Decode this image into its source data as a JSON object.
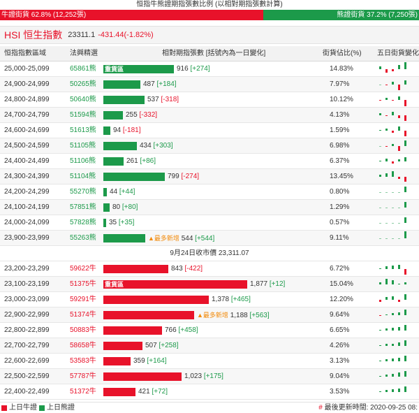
{
  "header": {
    "title": "恒指牛熊證期指張數比例 (以相對期指張數計算)",
    "bull_label": "牛證街貨 62.8% (12,252張)",
    "bear_label": "熊證街貨 37.2% (7,250張)",
    "bull_ratio": 0.628,
    "bull_color": "#e8122a",
    "bear_color": "#1c9a4a"
  },
  "index": {
    "name": "HSI 恒生指數",
    "price": "23311.1",
    "change": "-431.44(-1.82%)"
  },
  "columns": {
    "range": "恒指指數區域",
    "code": "法興精選",
    "count": "相對期指張數 [括號內為一日變化]",
    "pct": "街貨佔比(%)",
    "trend": "五日街貨變化"
  },
  "labels": {
    "heavy": "重貨區",
    "newest": "▲最多新增",
    "close_line": "9月24日收市價 23,311.07"
  },
  "bear_rows": [
    {
      "range": "25,000-25,099",
      "code": "65861熊",
      "count": "916",
      "chg": "[+274]",
      "pct": "14.83%",
      "value": 916,
      "heavy": true,
      "newest": false,
      "spark": [
        3,
        -4,
        -2,
        5,
        8
      ]
    },
    {
      "range": "24,900-24,999",
      "code": "50265熊",
      "count": "487",
      "chg": "[+184]",
      "pct": "7.97%",
      "value": 487,
      "heavy": false,
      "newest": false,
      "spark": [
        0,
        -1,
        3,
        -6,
        5
      ]
    },
    {
      "range": "24,800-24,899",
      "code": "50640熊",
      "count": "537",
      "chg": "[-318]",
      "pct": "10.12%",
      "value": 537,
      "heavy": false,
      "newest": false,
      "spark": [
        -1,
        2,
        -1,
        4,
        -7
      ]
    },
    {
      "range": "24,700-24,799",
      "code": "51594熊",
      "count": "255",
      "chg": "[-332]",
      "pct": "4.13%",
      "value": 255,
      "heavy": false,
      "newest": false,
      "spark": [
        2,
        -1,
        4,
        -3,
        -6
      ]
    },
    {
      "range": "24,600-24,699",
      "code": "51613熊",
      "count": "94",
      "chg": "[-181]",
      "pct": "1.59%",
      "value": 94,
      "heavy": false,
      "newest": false,
      "spark": [
        1,
        2,
        -2,
        5,
        -6
      ]
    },
    {
      "range": "24,500-24,599",
      "code": "51105熊",
      "count": "434",
      "chg": "[+303]",
      "pct": "6.98%",
      "value": 434,
      "heavy": false,
      "newest": false,
      "spark": [
        0,
        -1,
        2,
        -5,
        6
      ]
    },
    {
      "range": "24,400-24,499",
      "code": "51106熊",
      "count": "261",
      "chg": "[+86]",
      "pct": "6.37%",
      "value": 261,
      "heavy": false,
      "newest": false,
      "spark": [
        1,
        3,
        -2,
        2,
        5
      ]
    },
    {
      "range": "24,300-24,399",
      "code": "51104熊",
      "count": "799",
      "chg": "[-274]",
      "pct": "13.45%",
      "value": 799,
      "heavy": false,
      "newest": false,
      "spark": [
        2,
        4,
        6,
        -2,
        -5
      ]
    },
    {
      "range": "24,200-24,299",
      "code": "55270熊",
      "count": "44",
      "chg": "[+44]",
      "pct": "0.80%",
      "value": 44,
      "heavy": false,
      "newest": false,
      "spark": [
        0,
        0,
        0,
        0,
        6
      ]
    },
    {
      "range": "24,100-24,199",
      "code": "57851熊",
      "count": "80",
      "chg": "[+80]",
      "pct": "1.29%",
      "value": 80,
      "heavy": false,
      "newest": false,
      "spark": [
        0,
        0,
        0,
        0,
        6
      ]
    },
    {
      "range": "24,000-24,099",
      "code": "57828熊",
      "count": "35",
      "chg": "[+35]",
      "pct": "0.57%",
      "value": 35,
      "heavy": false,
      "newest": false,
      "spark": [
        0,
        0,
        0,
        0,
        6
      ]
    },
    {
      "range": "23,900-23,999",
      "code": "55263熊",
      "count": "544",
      "chg": "[+544]",
      "pct": "9.11%",
      "value": 544,
      "heavy": false,
      "newest": true,
      "spark": [
        0,
        0,
        0,
        0,
        8
      ]
    }
  ],
  "bull_rows": [
    {
      "range": "23,200-23,299",
      "code": "59622牛",
      "count": "843",
      "chg": "[-422]",
      "pct": "6.72%",
      "value": 843,
      "heavy": false,
      "newest": false,
      "spark": [
        1,
        3,
        4,
        5,
        -6
      ]
    },
    {
      "range": "23,100-23,199",
      "code": "51375牛",
      "count": "1,877",
      "chg": "[+12]",
      "pct": "15.04%",
      "value": 1877,
      "heavy": true,
      "newest": false,
      "spark": [
        2,
        6,
        5,
        1,
        2
      ]
    },
    {
      "range": "23,000-23,099",
      "code": "59291牛",
      "count": "1,378",
      "chg": "[+465]",
      "pct": "12.20%",
      "value": 1378,
      "heavy": false,
      "newest": false,
      "spark": [
        -2,
        3,
        4,
        -2,
        6
      ]
    },
    {
      "range": "22,900-22,999",
      "code": "51374牛",
      "count": "1,188",
      "chg": "[+563]",
      "pct": "9.64%",
      "value": 1188,
      "heavy": false,
      "newest": true,
      "spark": [
        -1,
        1,
        2,
        3,
        6
      ]
    },
    {
      "range": "22,800-22,899",
      "code": "50883牛",
      "count": "766",
      "chg": "[+458]",
      "pct": "6.65%",
      "value": 766,
      "heavy": false,
      "newest": false,
      "spark": [
        1,
        2,
        3,
        4,
        6
      ]
    },
    {
      "range": "22,700-22,799",
      "code": "58658牛",
      "count": "507",
      "chg": "[+258]",
      "pct": "4.26%",
      "value": 507,
      "heavy": false,
      "newest": false,
      "spark": [
        1,
        2,
        2,
        4,
        6
      ]
    },
    {
      "range": "22,600-22,699",
      "code": "53583牛",
      "count": "359",
      "chg": "[+164]",
      "pct": "3.13%",
      "value": 359,
      "heavy": false,
      "newest": false,
      "spark": [
        1,
        2,
        3,
        4,
        6
      ]
    },
    {
      "range": "22,500-22,599",
      "code": "57787牛",
      "count": "1,023",
      "chg": "[+175]",
      "pct": "9.04%",
      "value": 1023,
      "heavy": false,
      "newest": false,
      "spark": [
        1,
        2,
        3,
        5,
        6
      ]
    },
    {
      "range": "22,400-22,499",
      "code": "51372牛",
      "count": "421",
      "chg": "[+72]",
      "pct": "3.53%",
      "value": 421,
      "heavy": false,
      "newest": false,
      "spark": [
        1,
        2,
        3,
        4,
        6
      ]
    }
  ],
  "footer": {
    "legend_bull": "上日牛證",
    "legend_bear": "上日熊證",
    "updated": "最後更新時間: 2020-09-25 08:"
  }
}
